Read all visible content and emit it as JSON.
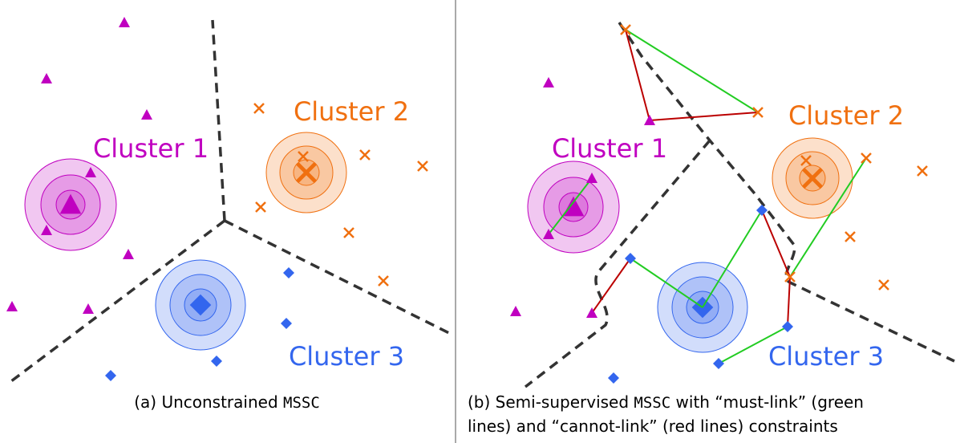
{
  "panels": [
    {
      "labels": [
        "Cluster 1",
        "Cluster 2",
        "Cluster 3"
      ],
      "caption": [
        "(a) Unconstrained ",
        "MSSC"
      ]
    },
    {
      "labels": [
        "Cluster 1",
        "Cluster 2",
        "Cluster 3"
      ],
      "caption": [
        "(b) Semi-supervised ",
        "MSSC",
        " with “must-link” (green",
        "lines) and “cannot-link” (red lines) constraints"
      ]
    }
  ]
}
